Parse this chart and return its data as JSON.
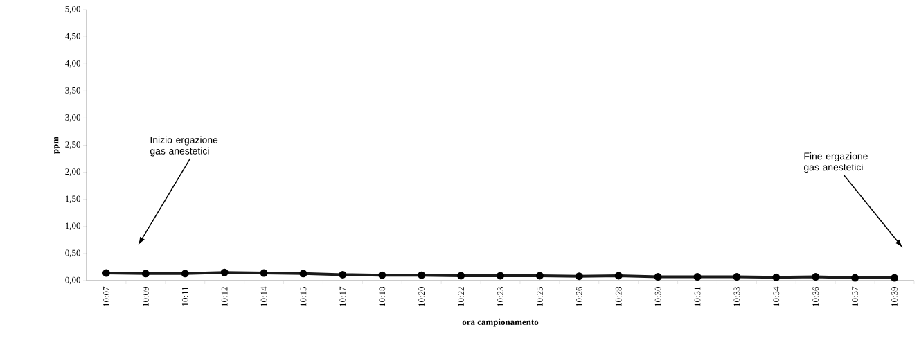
{
  "chart_data": {
    "type": "line",
    "xlabel": "ora campionamento",
    "ylabel": "ppm",
    "categories": [
      "10:07",
      "10:09",
      "10:11",
      "10:12",
      "10:14",
      "10:15",
      "10:17",
      "10:18",
      "10:20",
      "10:22",
      "10:23",
      "10:25",
      "10:26",
      "10:28",
      "10:30",
      "10:31",
      "10:33",
      "10:34",
      "10:36",
      "10:37",
      "10:39"
    ],
    "series": [
      {
        "color": "#1a1a1a",
        "values": [
          0.14,
          0.13,
          0.13,
          0.15,
          0.14,
          0.13,
          0.11,
          0.1,
          0.1,
          0.09,
          0.09,
          0.09,
          0.08,
          0.09,
          0.07,
          0.07,
          0.07,
          0.06,
          0.07,
          0.05,
          0.05
        ]
      }
    ],
    "ylim": [
      0,
      5
    ],
    "yticks": [
      {
        "value": 0,
        "label": "0,00"
      },
      {
        "value": 0.5,
        "label": "0,50"
      },
      {
        "value": 1,
        "label": "1,00"
      },
      {
        "value": 1.5,
        "label": "1,50"
      },
      {
        "value": 2,
        "label": "2,00"
      },
      {
        "value": 2.5,
        "label": "2,50"
      },
      {
        "value": 3,
        "label": "3,00"
      },
      {
        "value": 3.5,
        "label": "3,50"
      },
      {
        "value": 4,
        "label": "4,00"
      },
      {
        "value": 4.5,
        "label": "4,50"
      },
      {
        "value": 5,
        "label": "5,00"
      }
    ],
    "annotations": [
      "Inizio ergazione gas anestetici",
      "Fine ergazione gas anestetici"
    ],
    "marker": "circle",
    "line_style": "solid",
    "grid": false
  }
}
